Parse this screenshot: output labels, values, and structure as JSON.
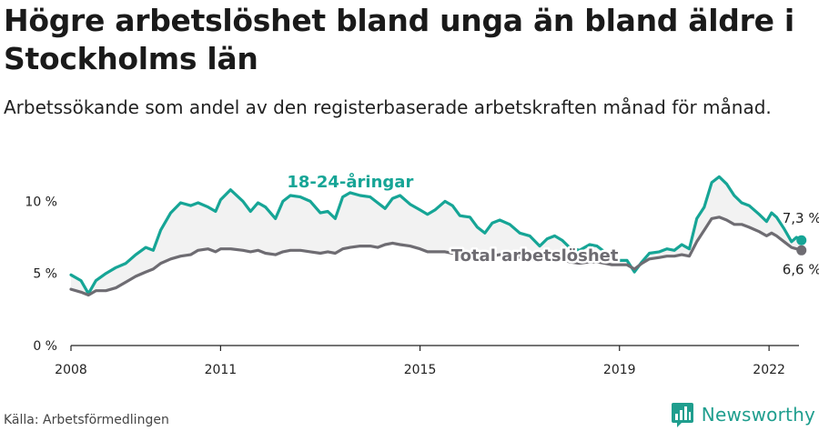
{
  "title": "Högre arbetslöshet bland unga än bland äldre i Stockholms län",
  "subtitle": "Arbetssökande som andel av den registerbaserade arbetskraften månad för månad.",
  "source": "Källa: Arbetsförmedlingen",
  "brand": "Newsworthy",
  "colors": {
    "young": "#16a596",
    "total": "#6e6c72",
    "fill": "#f2f2f2",
    "axis": "#222222"
  },
  "chart_data": {
    "type": "line",
    "title": "Högre arbetslöshet bland unga än bland äldre i Stockholms län",
    "subtitle": "Arbetssökande som andel av den registerbaserade arbetskraften månad för månad.",
    "xlim": [
      2008,
      2022.6
    ],
    "ylim": [
      0,
      11.6
    ],
    "x_ticks": [
      2008,
      2011,
      2015,
      2019,
      2022
    ],
    "x_tick_labels": [
      "2008",
      "2011",
      "2015",
      "2019",
      "2022"
    ],
    "y_ticks": [
      0,
      5,
      10
    ],
    "y_tick_labels": [
      "0 %",
      "5 %",
      "10 %"
    ],
    "grid": false,
    "series": [
      {
        "name": "18-24-åringar",
        "color": "#16a596",
        "end_label": "7,3 %",
        "points": [
          [
            2008.0,
            4.9
          ],
          [
            2008.2,
            4.5
          ],
          [
            2008.35,
            3.6
          ],
          [
            2008.5,
            4.5
          ],
          [
            2008.7,
            5.0
          ],
          [
            2008.9,
            5.4
          ],
          [
            2009.1,
            5.7
          ],
          [
            2009.3,
            6.3
          ],
          [
            2009.5,
            6.8
          ],
          [
            2009.65,
            6.6
          ],
          [
            2009.8,
            8.0
          ],
          [
            2010.0,
            9.2
          ],
          [
            2010.2,
            9.9
          ],
          [
            2010.4,
            9.7
          ],
          [
            2010.55,
            9.9
          ],
          [
            2010.75,
            9.6
          ],
          [
            2010.9,
            9.3
          ],
          [
            2011.0,
            10.1
          ],
          [
            2011.2,
            10.8
          ],
          [
            2011.45,
            10.0
          ],
          [
            2011.6,
            9.3
          ],
          [
            2011.75,
            9.9
          ],
          [
            2011.9,
            9.6
          ],
          [
            2012.1,
            8.8
          ],
          [
            2012.25,
            10.0
          ],
          [
            2012.4,
            10.4
          ],
          [
            2012.6,
            10.3
          ],
          [
            2012.8,
            10.0
          ],
          [
            2013.0,
            9.2
          ],
          [
            2013.15,
            9.3
          ],
          [
            2013.3,
            8.8
          ],
          [
            2013.45,
            10.3
          ],
          [
            2013.6,
            10.6
          ],
          [
            2013.8,
            10.4
          ],
          [
            2014.0,
            10.3
          ],
          [
            2014.15,
            9.9
          ],
          [
            2014.3,
            9.5
          ],
          [
            2014.45,
            10.2
          ],
          [
            2014.6,
            10.4
          ],
          [
            2014.8,
            9.8
          ],
          [
            2015.0,
            9.4
          ],
          [
            2015.15,
            9.1
          ],
          [
            2015.3,
            9.4
          ],
          [
            2015.5,
            10.0
          ],
          [
            2015.65,
            9.7
          ],
          [
            2015.8,
            9.0
          ],
          [
            2016.0,
            8.9
          ],
          [
            2016.15,
            8.2
          ],
          [
            2016.3,
            7.8
          ],
          [
            2016.45,
            8.5
          ],
          [
            2016.6,
            8.7
          ],
          [
            2016.8,
            8.4
          ],
          [
            2017.0,
            7.8
          ],
          [
            2017.2,
            7.6
          ],
          [
            2017.4,
            6.9
          ],
          [
            2017.55,
            7.4
          ],
          [
            2017.7,
            7.6
          ],
          [
            2017.85,
            7.3
          ],
          [
            2018.0,
            6.8
          ],
          [
            2018.2,
            6.6
          ],
          [
            2018.4,
            7.0
          ],
          [
            2018.55,
            6.9
          ],
          [
            2018.7,
            6.5
          ],
          [
            2018.85,
            6.2
          ],
          [
            2019.0,
            5.9
          ],
          [
            2019.15,
            5.9
          ],
          [
            2019.3,
            5.1
          ],
          [
            2019.45,
            5.8
          ],
          [
            2019.6,
            6.4
          ],
          [
            2019.8,
            6.5
          ],
          [
            2019.95,
            6.7
          ],
          [
            2020.1,
            6.6
          ],
          [
            2020.25,
            7.0
          ],
          [
            2020.4,
            6.7
          ],
          [
            2020.55,
            8.8
          ],
          [
            2020.7,
            9.6
          ],
          [
            2020.85,
            11.3
          ],
          [
            2021.0,
            11.7
          ],
          [
            2021.15,
            11.2
          ],
          [
            2021.3,
            10.4
          ],
          [
            2021.45,
            9.9
          ],
          [
            2021.6,
            9.7
          ],
          [
            2021.8,
            9.1
          ],
          [
            2021.95,
            8.6
          ],
          [
            2022.05,
            9.2
          ],
          [
            2022.15,
            8.9
          ],
          [
            2022.3,
            8.1
          ],
          [
            2022.45,
            7.2
          ],
          [
            2022.55,
            7.5
          ],
          [
            2022.65,
            7.3
          ]
        ]
      },
      {
        "name": "Total arbetslöshet",
        "color": "#6e6c72",
        "end_label": "6,6 %",
        "points": [
          [
            2008.0,
            3.9
          ],
          [
            2008.2,
            3.7
          ],
          [
            2008.35,
            3.5
          ],
          [
            2008.5,
            3.8
          ],
          [
            2008.7,
            3.8
          ],
          [
            2008.9,
            4.0
          ],
          [
            2009.1,
            4.4
          ],
          [
            2009.3,
            4.8
          ],
          [
            2009.5,
            5.1
          ],
          [
            2009.65,
            5.3
          ],
          [
            2009.8,
            5.7
          ],
          [
            2010.0,
            6.0
          ],
          [
            2010.2,
            6.2
          ],
          [
            2010.4,
            6.3
          ],
          [
            2010.55,
            6.6
          ],
          [
            2010.75,
            6.7
          ],
          [
            2010.9,
            6.5
          ],
          [
            2011.0,
            6.7
          ],
          [
            2011.2,
            6.7
          ],
          [
            2011.45,
            6.6
          ],
          [
            2011.6,
            6.5
          ],
          [
            2011.75,
            6.6
          ],
          [
            2011.9,
            6.4
          ],
          [
            2012.1,
            6.3
          ],
          [
            2012.25,
            6.5
          ],
          [
            2012.4,
            6.6
          ],
          [
            2012.6,
            6.6
          ],
          [
            2012.8,
            6.5
          ],
          [
            2013.0,
            6.4
          ],
          [
            2013.15,
            6.5
          ],
          [
            2013.3,
            6.4
          ],
          [
            2013.45,
            6.7
          ],
          [
            2013.6,
            6.8
          ],
          [
            2013.8,
            6.9
          ],
          [
            2014.0,
            6.9
          ],
          [
            2014.15,
            6.8
          ],
          [
            2014.3,
            7.0
          ],
          [
            2014.45,
            7.1
          ],
          [
            2014.6,
            7.0
          ],
          [
            2014.8,
            6.9
          ],
          [
            2015.0,
            6.7
          ],
          [
            2015.15,
            6.5
          ],
          [
            2015.3,
            6.5
          ],
          [
            2015.5,
            6.5
          ],
          [
            2015.65,
            6.4
          ],
          [
            2015.8,
            6.3
          ],
          [
            2016.0,
            6.4
          ],
          [
            2016.15,
            6.2
          ],
          [
            2016.3,
            6.1
          ],
          [
            2016.45,
            6.2
          ],
          [
            2016.6,
            6.3
          ],
          [
            2016.8,
            6.2
          ],
          [
            2017.0,
            6.1
          ],
          [
            2017.2,
            6.0
          ],
          [
            2017.4,
            5.8
          ],
          [
            2017.55,
            6.0
          ],
          [
            2017.7,
            6.1
          ],
          [
            2017.85,
            6.0
          ],
          [
            2018.0,
            5.8
          ],
          [
            2018.2,
            5.7
          ],
          [
            2018.4,
            5.8
          ],
          [
            2018.55,
            5.8
          ],
          [
            2018.7,
            5.7
          ],
          [
            2018.85,
            5.6
          ],
          [
            2019.0,
            5.6
          ],
          [
            2019.15,
            5.6
          ],
          [
            2019.3,
            5.3
          ],
          [
            2019.45,
            5.7
          ],
          [
            2019.6,
            6.0
          ],
          [
            2019.8,
            6.1
          ],
          [
            2019.95,
            6.2
          ],
          [
            2020.1,
            6.2
          ],
          [
            2020.25,
            6.3
          ],
          [
            2020.4,
            6.2
          ],
          [
            2020.55,
            7.2
          ],
          [
            2020.7,
            8.0
          ],
          [
            2020.85,
            8.8
          ],
          [
            2021.0,
            8.9
          ],
          [
            2021.15,
            8.7
          ],
          [
            2021.3,
            8.4
          ],
          [
            2021.45,
            8.4
          ],
          [
            2021.6,
            8.2
          ],
          [
            2021.8,
            7.9
          ],
          [
            2021.95,
            7.6
          ],
          [
            2022.05,
            7.8
          ],
          [
            2022.15,
            7.6
          ],
          [
            2022.3,
            7.2
          ],
          [
            2022.45,
            6.8
          ],
          [
            2022.55,
            6.7
          ],
          [
            2022.65,
            6.6
          ]
        ]
      }
    ],
    "annotations": [
      {
        "text": "18-24-åringar",
        "series": 0,
        "x": 2013.6,
        "y": 10.6
      },
      {
        "text": "Total arbetslöshet",
        "series": 1,
        "x": 2017.3,
        "y": 6.0
      }
    ]
  }
}
